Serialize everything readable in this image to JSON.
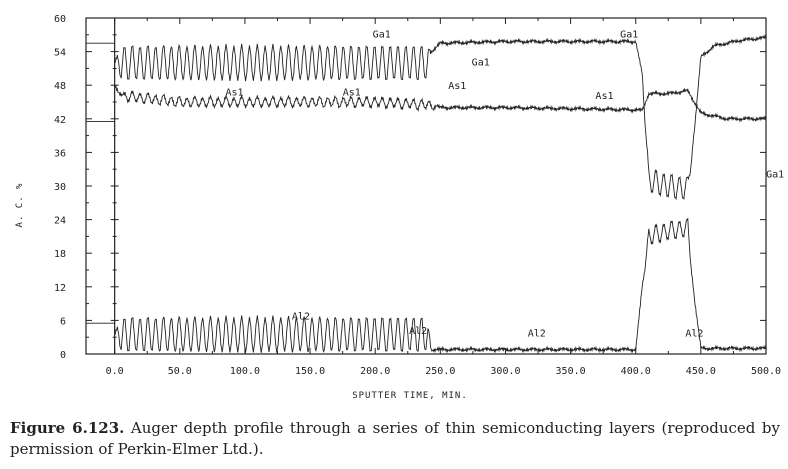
{
  "chart_data": {
    "type": "line",
    "xlabel": "SPUTTER TIME, MIN.",
    "ylabel": "A. C. %",
    "xlim": [
      -22,
      500
    ],
    "ylim": [
      0,
      60
    ],
    "x_ticks": [
      "0.0",
      "50.0",
      "100.0",
      "150.0",
      "200.0",
      "250.0",
      "300.0",
      "350.0",
      "400.0",
      "450.0",
      "500.0"
    ],
    "y_ticks": [
      "0",
      "6",
      "12",
      "18",
      "24",
      "30",
      "36",
      "42",
      "48",
      "54",
      "60"
    ],
    "grid": false,
    "series": [
      {
        "name": "Ga1",
        "x": [
          0,
          5,
          240,
          243,
          250,
          300,
          400,
          405,
          410,
          425,
          440,
          445,
          450,
          460,
          470,
          480,
          500
        ],
        "y": [
          52,
          52,
          52,
          54,
          55.5,
          55.8,
          55.8,
          50,
          31,
          30,
          29.5,
          40,
          53,
          55,
          55.5,
          56,
          56.5
        ],
        "osc": [
          0,
          3,
          3,
          0,
          0,
          0,
          0,
          0,
          2,
          2,
          2,
          0,
          0,
          0,
          0,
          0,
          0
        ]
      },
      {
        "name": "As1",
        "x": [
          0,
          3,
          10,
          50,
          100,
          150,
          200,
          240,
          250,
          300,
          350,
          400,
          405,
          410,
          425,
          440,
          445,
          450,
          470,
          500
        ],
        "y": [
          48,
          46.5,
          46,
          45,
          45,
          45,
          45,
          44.5,
          44,
          44,
          43.8,
          43.6,
          43.5,
          46.5,
          46.5,
          47,
          45,
          43,
          42,
          42
        ],
        "osc": [
          0,
          0,
          0.8,
          0.8,
          0.8,
          0.8,
          0.8,
          0.8,
          0,
          0,
          0,
          0,
          0,
          0,
          0,
          0,
          0,
          0,
          0,
          0
        ]
      },
      {
        "name": "Al2",
        "x": [
          0,
          5,
          240,
          243,
          300,
          400,
          405,
          410,
          425,
          440,
          445,
          450,
          500
        ],
        "y": [
          3.5,
          3.5,
          3.5,
          0.8,
          0.8,
          0.8,
          12,
          21,
          22,
          22.5,
          10,
          1,
          1
        ],
        "osc": [
          0,
          3,
          3,
          0,
          0,
          0,
          0,
          1.5,
          1.5,
          1.5,
          0,
          0,
          0
        ]
      }
    ],
    "annotations": [
      {
        "text": "Ga1",
        "x": 205,
        "y": 56.5
      },
      {
        "text": "Ga1",
        "x": 395,
        "y": 56.5
      },
      {
        "text": "Ga1",
        "x": 281,
        "y": 51.5
      },
      {
        "text": "As1",
        "x": 92,
        "y": 46.2
      },
      {
        "text": "As1",
        "x": 182,
        "y": 46.2
      },
      {
        "text": "As1",
        "x": 263,
        "y": 47.3
      },
      {
        "text": "As1",
        "x": 376,
        "y": 45.5
      },
      {
        "text": "Ga1",
        "x": 507,
        "y": 31.5
      },
      {
        "text": "Al2",
        "x": 143,
        "y": 6.2
      },
      {
        "text": "Al2",
        "x": 233,
        "y": 3.6
      },
      {
        "text": "Al2",
        "x": 324,
        "y": 3.1
      },
      {
        "text": "Al2",
        "x": 445,
        "y": 3.1
      }
    ],
    "left_markers": [
      {
        "series": "Ga1",
        "y": 55.5
      },
      {
        "series": "As1",
        "y": 41.5
      },
      {
        "series": "Al2",
        "y": 5.5
      }
    ]
  },
  "caption": {
    "label": "Figure 6.123.",
    "text": "Auger depth profile through a series of thin semiconducting layers (reproduced by permission of Perkin-Elmer Ltd.)."
  }
}
